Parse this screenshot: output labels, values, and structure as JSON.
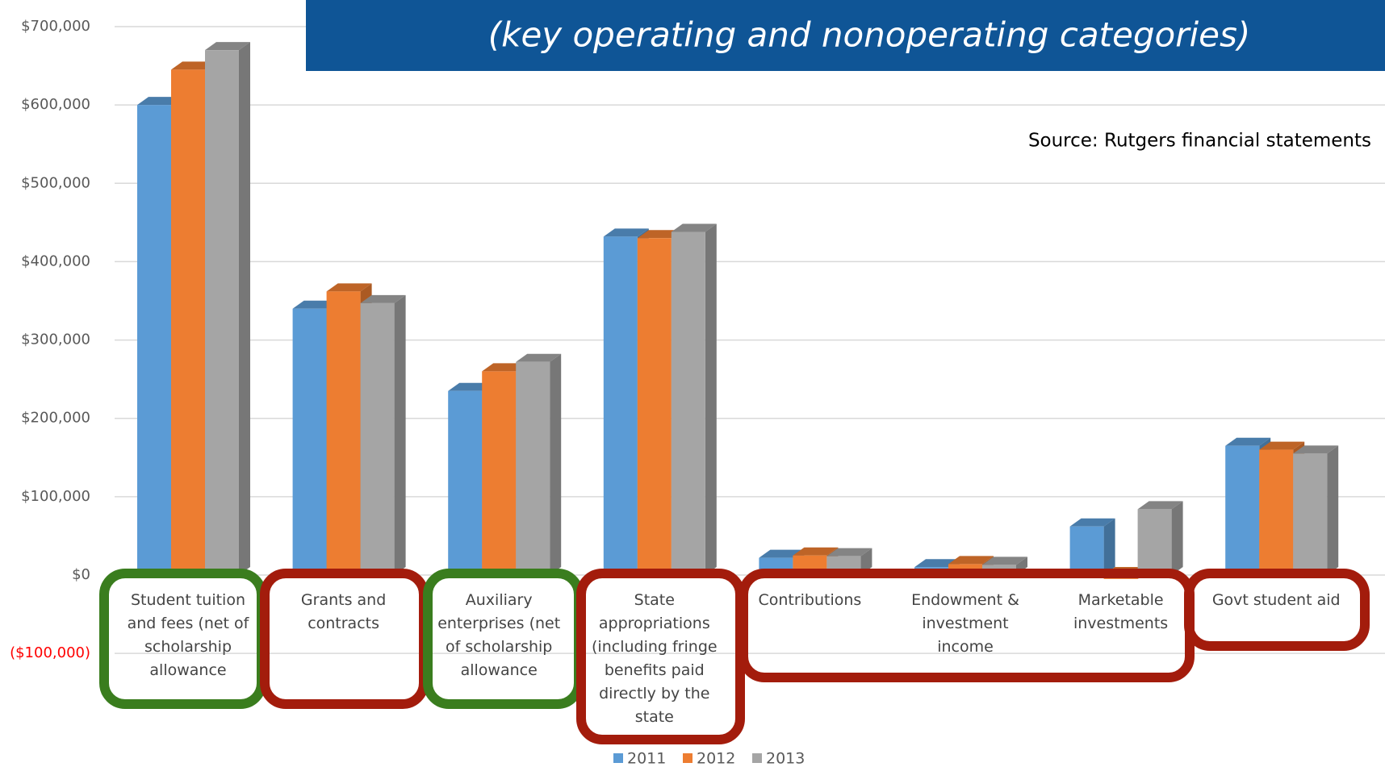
{
  "chart_data": {
    "type": "bar3d",
    "title": "(key operating and nonoperating categories)",
    "annotation": "Source: Rutgers financial statements",
    "categories": [
      "Student tuition and fees (net of scholarship allowance",
      "Grants and contracts",
      "Auxiliary enterprises (net of scholarship allowance",
      "State appropriations (including fringe benefits paid directly by the state",
      "Contributions",
      "Endowment & investment income",
      "Marketable investments",
      "Govt student aid"
    ],
    "series": [
      {
        "name": "2011",
        "color": "#5b9bd5",
        "values": [
          600000,
          340000,
          235000,
          432000,
          22000,
          10000,
          62000,
          165000
        ]
      },
      {
        "name": "2012",
        "color": "#ed7d31",
        "values": [
          645000,
          362000,
          260000,
          430000,
          25000,
          14000,
          -5000,
          160000
        ]
      },
      {
        "name": "2013",
        "color": "#a5a5a5",
        "values": [
          670000,
          347000,
          272000,
          438000,
          24000,
          13000,
          84000,
          155000
        ]
      }
    ],
    "ylim": [
      -100000,
      700000
    ],
    "yticks": [
      {
        "value": -100000,
        "label": "($100,000)"
      },
      {
        "value": 0,
        "label": "$0"
      },
      {
        "value": 100000,
        "label": "$100,000"
      },
      {
        "value": 200000,
        "label": "$200,000"
      },
      {
        "value": 300000,
        "label": "$300,000"
      },
      {
        "value": 400000,
        "label": "$400,000"
      },
      {
        "value": 500000,
        "label": "$500,000"
      },
      {
        "value": 600000,
        "label": "$600,000"
      },
      {
        "value": 700000,
        "label": "$700,000"
      }
    ],
    "grid": true,
    "legend": "bottom"
  }
}
